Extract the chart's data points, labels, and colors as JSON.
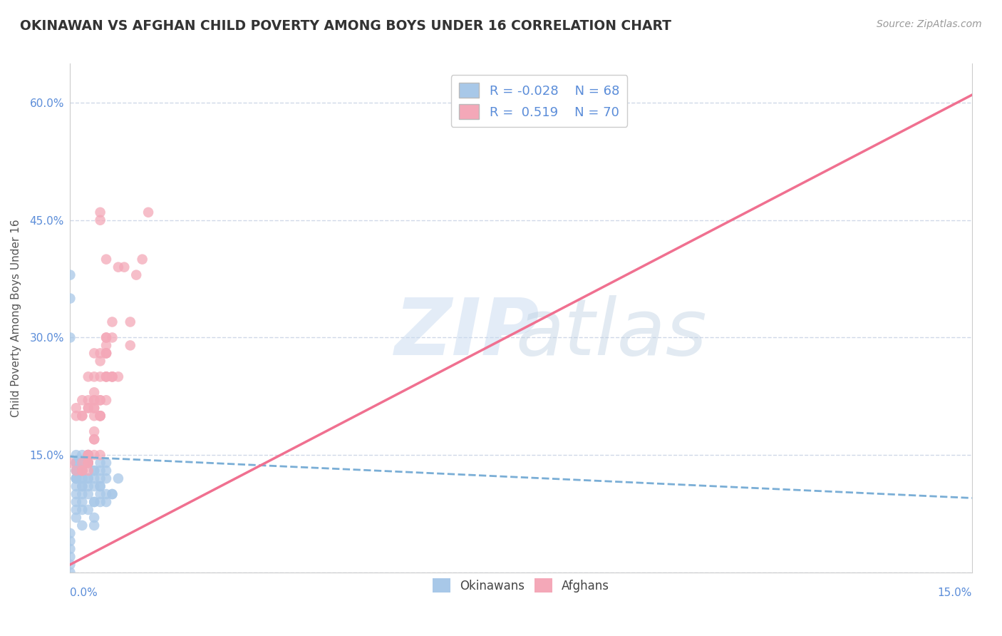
{
  "title": "OKINAWAN VS AFGHAN CHILD POVERTY AMONG BOYS UNDER 16 CORRELATION CHART",
  "source": "Source: ZipAtlas.com",
  "ylabel": "Child Poverty Among Boys Under 16",
  "yticks": [
    0.0,
    0.15,
    0.3,
    0.45,
    0.6
  ],
  "ytick_labels": [
    "",
    "15.0%",
    "30.0%",
    "45.0%",
    "60.0%"
  ],
  "xlim": [
    0.0,
    0.15
  ],
  "ylim": [
    0.0,
    0.65
  ],
  "okinawan_color": "#a8c8e8",
  "afghan_color": "#f4a8b8",
  "okinawan_line_color": "#7aaed6",
  "afghan_line_color": "#f07090",
  "R_okinawan": -0.028,
  "N_okinawan": 68,
  "R_afghan": 0.519,
  "N_afghan": 70,
  "background_color": "#ffffff",
  "grid_color": "#d0d8e8",
  "ok_scatter_x": [
    0.0,
    0.0,
    0.0,
    0.001,
    0.001,
    0.001,
    0.001,
    0.001,
    0.001,
    0.001,
    0.001,
    0.002,
    0.002,
    0.002,
    0.002,
    0.002,
    0.002,
    0.002,
    0.003,
    0.003,
    0.003,
    0.003,
    0.003,
    0.004,
    0.004,
    0.004,
    0.004,
    0.004,
    0.005,
    0.005,
    0.005,
    0.005,
    0.005,
    0.006,
    0.006,
    0.006,
    0.007,
    0.008,
    0.0,
    0.0,
    0.0,
    0.0,
    0.001,
    0.001,
    0.001,
    0.001,
    0.002,
    0.002,
    0.002,
    0.002,
    0.003,
    0.003,
    0.003,
    0.004,
    0.004,
    0.005,
    0.005,
    0.006,
    0.006,
    0.007,
    0.0,
    0.0,
    0.001,
    0.001,
    0.002,
    0.002,
    0.003,
    0.004
  ],
  "ok_scatter_y": [
    0.38,
    0.35,
    0.3,
    0.14,
    0.13,
    0.12,
    0.11,
    0.1,
    0.09,
    0.08,
    0.07,
    0.14,
    0.13,
    0.12,
    0.11,
    0.09,
    0.08,
    0.06,
    0.15,
    0.14,
    0.12,
    0.1,
    0.08,
    0.13,
    0.12,
    0.09,
    0.07,
    0.06,
    0.14,
    0.12,
    0.11,
    0.1,
    0.09,
    0.14,
    0.12,
    0.09,
    0.1,
    0.12,
    0.05,
    0.04,
    0.03,
    0.02,
    0.15,
    0.14,
    0.13,
    0.12,
    0.15,
    0.14,
    0.12,
    0.1,
    0.15,
    0.14,
    0.12,
    0.13,
    0.11,
    0.13,
    0.11,
    0.13,
    0.1,
    0.1,
    0.0,
    0.01,
    0.14,
    0.12,
    0.13,
    0.11,
    0.11,
    0.09
  ],
  "af_scatter_x": [
    0.0,
    0.001,
    0.002,
    0.002,
    0.003,
    0.003,
    0.003,
    0.004,
    0.004,
    0.004,
    0.005,
    0.005,
    0.005,
    0.006,
    0.006,
    0.006,
    0.007,
    0.007,
    0.008,
    0.009,
    0.01,
    0.01,
    0.011,
    0.012,
    0.013,
    0.002,
    0.003,
    0.004,
    0.005,
    0.006,
    0.001,
    0.002,
    0.003,
    0.004,
    0.005,
    0.006,
    0.007,
    0.002,
    0.003,
    0.004,
    0.005,
    0.001,
    0.002,
    0.003,
    0.004,
    0.005,
    0.006,
    0.003,
    0.004,
    0.005,
    0.006,
    0.002,
    0.003,
    0.004,
    0.005,
    0.006,
    0.004,
    0.005,
    0.006,
    0.007,
    0.003,
    0.004,
    0.005,
    0.006,
    0.004,
    0.006,
    0.008,
    0.003,
    0.005,
    0.007
  ],
  "af_scatter_y": [
    0.14,
    0.13,
    0.13,
    0.2,
    0.14,
    0.15,
    0.21,
    0.15,
    0.17,
    0.22,
    0.15,
    0.2,
    0.46,
    0.22,
    0.25,
    0.28,
    0.25,
    0.3,
    0.25,
    0.39,
    0.29,
    0.32,
    0.38,
    0.4,
    0.46,
    0.2,
    0.25,
    0.23,
    0.28,
    0.3,
    0.2,
    0.22,
    0.22,
    0.25,
    0.27,
    0.28,
    0.25,
    0.13,
    0.14,
    0.18,
    0.2,
    0.21,
    0.14,
    0.21,
    0.2,
    0.22,
    0.25,
    0.15,
    0.17,
    0.2,
    0.25,
    0.13,
    0.15,
    0.21,
    0.22,
    0.29,
    0.28,
    0.25,
    0.3,
    0.32,
    0.14,
    0.22,
    0.2,
    0.28,
    0.21,
    0.4,
    0.39,
    0.13,
    0.45,
    0.25
  ],
  "ok_line_x0": 0.0,
  "ok_line_x1": 0.15,
  "ok_line_y0": 0.148,
  "ok_line_y1": 0.095,
  "af_line_x0": 0.0,
  "af_line_x1": 0.15,
  "af_line_y0": 0.01,
  "af_line_y1": 0.61
}
